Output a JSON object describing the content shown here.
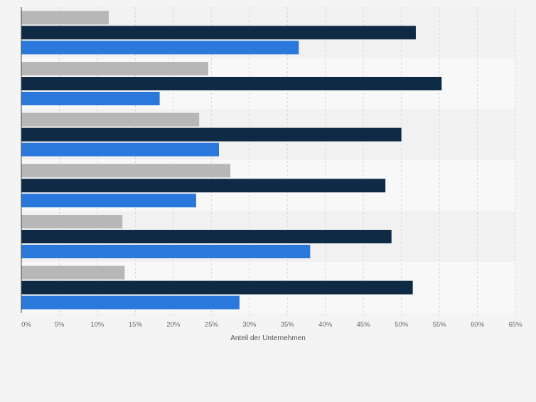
{
  "chart_data": {
    "type": "bar",
    "orientation": "horizontal",
    "title": "",
    "xlabel": "Anteil der Unternehmen",
    "ylabel": "",
    "xlim": [
      0,
      65
    ],
    "x_ticks": [
      "0%",
      "5%",
      "10%",
      "15%",
      "20%",
      "25%",
      "30%",
      "35%",
      "40%",
      "45%",
      "50%",
      "55%",
      "60%",
      "65%"
    ],
    "grid": true,
    "legend": "none",
    "categories": [
      "",
      "",
      "",
      "",
      "",
      ""
    ],
    "series": [
      {
        "color": "#b7b7b7",
        "values": [
          11.5,
          24.6,
          23.4,
          27.5,
          13.3,
          13.6
        ]
      },
      {
        "color": "#0f2a44",
        "values": [
          51.9,
          55.3,
          50.0,
          47.9,
          48.7,
          51.5
        ]
      },
      {
        "color": "#2a78db",
        "values": [
          36.5,
          18.2,
          26.0,
          23.0,
          38.0,
          28.7
        ]
      }
    ]
  }
}
